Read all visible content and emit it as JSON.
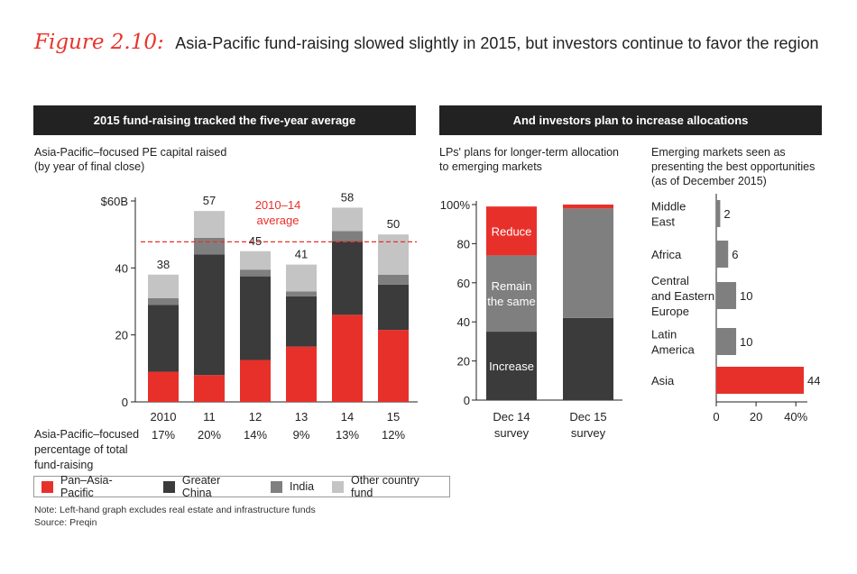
{
  "figure": {
    "label": "Figure 2.10:",
    "title": "Asia-Pacific fund-raising slowed slightly in 2015, but investors continue to favor the region"
  },
  "colors": {
    "pan_asia_pacific": "#e8302a",
    "greater_china": "#3b3b3b",
    "india": "#7f7f7f",
    "other_country_fund": "#c4c4c4",
    "average_line": "#e8302a",
    "header_bg": "#222222"
  },
  "left_panel": {
    "header": "2015 fund-raising tracked the five-year average",
    "subtitle_line1": "Asia-Pacific–focused PE capital raised",
    "subtitle_line2": "(by year of final close)",
    "percentage_label_line1": "Asia-Pacific–focused",
    "percentage_label_line2": "percentage of total",
    "percentage_label_line3": "fund-raising"
  },
  "legend": {
    "pan": "Pan–Asia-Pacific",
    "china": "Greater China",
    "india": "India",
    "other": "Other country fund"
  },
  "right_panel": {
    "header": "And investors plan to increase allocations",
    "lp_subtitle_line1": "LPs' plans for longer-term allocation",
    "lp_subtitle_line2": "to emerging markets",
    "em_subtitle_line1": "Emerging markets seen as",
    "em_subtitle_line2": "presenting the best opportunities",
    "em_subtitle_line3": "(as of December 2015)"
  },
  "notes": {
    "note": "Note: Left-hand graph excludes real estate and infrastructure funds",
    "source": "Source: Preqin"
  },
  "chart_data": [
    {
      "type": "bar",
      "stacked": true,
      "title": "2015 fund-raising tracked the five-year average",
      "ylabel": "Asia-Pacific–focused PE capital raised (by year of final close)",
      "ylim": [
        0,
        60
      ],
      "yticks": [
        "0",
        "20",
        "40",
        "$60B"
      ],
      "categories": [
        "2010",
        "11",
        "12",
        "13",
        "14",
        "15"
      ],
      "series": [
        {
          "name": "Pan–Asia-Pacific",
          "values": [
            9,
            8,
            12.5,
            16.5,
            26,
            21.5
          ]
        },
        {
          "name": "Greater China",
          "values": [
            20,
            36,
            25,
            15,
            22,
            13.5
          ]
        },
        {
          "name": "India",
          "values": [
            2,
            5,
            2,
            1.5,
            3,
            3
          ]
        },
        {
          "name": "Other country fund",
          "values": [
            7,
            8,
            5.5,
            8,
            7,
            12
          ]
        }
      ],
      "totals": [
        "38",
        "57",
        "45",
        "41",
        "58",
        "50"
      ],
      "percentages": [
        "17%",
        "20%",
        "14%",
        "9%",
        "13%",
        "12%"
      ],
      "average_value": 47.8,
      "average_label_line1": "2010–14",
      "average_label_line2": "average"
    },
    {
      "type": "bar",
      "stacked": true,
      "title": "LPs' plans for longer-term allocation to emerging markets",
      "ylim": [
        0,
        100
      ],
      "yticks": [
        "0",
        "20",
        "40",
        "60",
        "80",
        "100%"
      ],
      "categories": [
        {
          "line1": "Dec 14",
          "line2": "survey"
        },
        {
          "line1": "Dec 15",
          "line2": "survey"
        }
      ],
      "series": [
        {
          "name": "Increase",
          "label_lines": [
            "Increase"
          ],
          "color": "#3b3b3b",
          "values": [
            35,
            42
          ]
        },
        {
          "name": "Remain the same",
          "label_lines": [
            "Remain",
            "the same"
          ],
          "color": "#7f7f7f",
          "values": [
            39,
            56
          ]
        },
        {
          "name": "Reduce",
          "label_lines": [
            "Reduce"
          ],
          "color": "#e8302a",
          "values": [
            25,
            2
          ]
        }
      ]
    },
    {
      "type": "bar",
      "orientation": "horizontal",
      "title": "Emerging markets seen as presenting the best opportunities (as of December 2015)",
      "xlim": [
        0,
        44
      ],
      "xticks": [
        "0",
        "20",
        "40%"
      ],
      "categories": [
        {
          "lines": [
            "Middle",
            "East"
          ]
        },
        {
          "lines": [
            "Africa"
          ]
        },
        {
          "lines": [
            "Central",
            "and Eastern",
            "Europe"
          ]
        },
        {
          "lines": [
            "Latin",
            "America"
          ]
        },
        {
          "lines": [
            "Asia"
          ]
        }
      ],
      "values": [
        2,
        6,
        10,
        10,
        44
      ],
      "value_labels": [
        "2",
        "6",
        "10",
        "10",
        "44"
      ],
      "highlight_index": 4
    }
  ]
}
